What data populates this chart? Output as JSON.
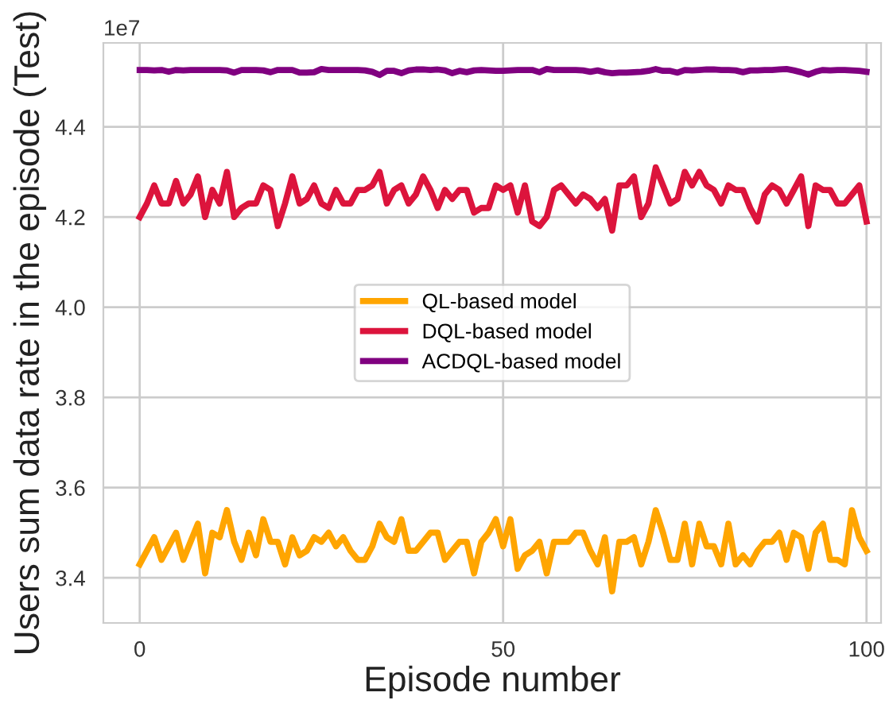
{
  "chart_data": {
    "type": "line",
    "xlabel": "Episode number",
    "ylabel": "Users sum data rate in the episode (Test)",
    "annotations": [
      "1e7"
    ],
    "x": [
      0,
      1,
      2,
      3,
      4,
      5,
      6,
      7,
      8,
      9,
      10,
      11,
      12,
      13,
      14,
      15,
      16,
      17,
      18,
      19,
      20,
      21,
      22,
      23,
      24,
      25,
      26,
      27,
      28,
      29,
      30,
      31,
      32,
      33,
      34,
      35,
      36,
      37,
      38,
      39,
      40,
      41,
      42,
      43,
      44,
      45,
      46,
      47,
      48,
      49,
      50,
      51,
      52,
      53,
      54,
      55,
      56,
      57,
      58,
      59,
      60,
      61,
      62,
      63,
      64,
      65,
      66,
      67,
      68,
      69,
      70,
      71,
      72,
      73,
      74,
      75,
      76,
      77,
      78,
      79,
      80,
      81,
      82,
      83,
      84,
      85,
      86,
      87,
      88,
      89,
      90,
      91,
      92,
      93,
      94,
      95,
      96,
      97,
      98,
      99,
      100
    ],
    "series": [
      {
        "name": "QL-based model",
        "color": "#ffa500",
        "values": [
          3.43,
          3.46,
          3.49,
          3.44,
          3.47,
          3.5,
          3.44,
          3.48,
          3.52,
          3.41,
          3.5,
          3.49,
          3.55,
          3.48,
          3.44,
          3.5,
          3.45,
          3.53,
          3.48,
          3.48,
          3.43,
          3.49,
          3.45,
          3.46,
          3.49,
          3.48,
          3.5,
          3.47,
          3.49,
          3.46,
          3.44,
          3.44,
          3.47,
          3.52,
          3.49,
          3.48,
          3.53,
          3.46,
          3.46,
          3.48,
          3.5,
          3.5,
          3.44,
          3.46,
          3.48,
          3.48,
          3.41,
          3.48,
          3.5,
          3.53,
          3.47,
          3.53,
          3.42,
          3.45,
          3.46,
          3.48,
          3.41,
          3.48,
          3.48,
          3.48,
          3.5,
          3.5,
          3.46,
          3.43,
          3.49,
          3.37,
          3.48,
          3.48,
          3.49,
          3.43,
          3.48,
          3.55,
          3.5,
          3.44,
          3.44,
          3.52,
          3.43,
          3.52,
          3.47,
          3.47,
          3.43,
          3.52,
          3.43,
          3.45,
          3.43,
          3.46,
          3.48,
          3.48,
          3.5,
          3.44,
          3.5,
          3.49,
          3.42,
          3.5,
          3.52,
          3.44,
          3.44,
          3.43,
          3.55,
          3.49,
          3.46
        ]
      },
      {
        "name": "DQL-based model",
        "color": "#dc143c",
        "values": [
          4.2,
          4.23,
          4.27,
          4.23,
          4.23,
          4.28,
          4.23,
          4.25,
          4.29,
          4.2,
          4.26,
          4.23,
          4.3,
          4.2,
          4.22,
          4.23,
          4.23,
          4.27,
          4.26,
          4.18,
          4.23,
          4.29,
          4.23,
          4.24,
          4.27,
          4.23,
          4.22,
          4.26,
          4.23,
          4.23,
          4.26,
          4.26,
          4.27,
          4.3,
          4.23,
          4.26,
          4.27,
          4.23,
          4.25,
          4.29,
          4.26,
          4.22,
          4.26,
          4.24,
          4.26,
          4.26,
          4.21,
          4.22,
          4.22,
          4.27,
          4.26,
          4.27,
          4.21,
          4.27,
          4.19,
          4.18,
          4.2,
          4.26,
          4.27,
          4.25,
          4.23,
          4.25,
          4.24,
          4.22,
          4.24,
          4.17,
          4.27,
          4.27,
          4.29,
          4.2,
          4.23,
          4.31,
          4.27,
          4.23,
          4.24,
          4.3,
          4.27,
          4.3,
          4.27,
          4.26,
          4.23,
          4.27,
          4.26,
          4.26,
          4.22,
          4.19,
          4.25,
          4.27,
          4.26,
          4.23,
          4.26,
          4.29,
          4.18,
          4.27,
          4.26,
          4.26,
          4.23,
          4.23,
          4.25,
          4.27,
          4.19
        ]
      },
      {
        "name": "ACDQL-based model",
        "color": "#800080",
        "values": [
          4.526,
          4.526,
          4.525,
          4.526,
          4.522,
          4.526,
          4.525,
          4.526,
          4.526,
          4.526,
          4.526,
          4.526,
          4.525,
          4.52,
          4.526,
          4.526,
          4.526,
          4.525,
          4.521,
          4.526,
          4.526,
          4.526,
          4.52,
          4.52,
          4.521,
          4.528,
          4.526,
          4.526,
          4.526,
          4.526,
          4.526,
          4.525,
          4.522,
          4.515,
          4.524,
          4.524,
          4.519,
          4.525,
          4.527,
          4.527,
          4.526,
          4.527,
          4.525,
          4.519,
          4.524,
          4.521,
          4.525,
          4.526,
          4.525,
          4.524,
          4.524,
          4.525,
          4.526,
          4.526,
          4.526,
          4.521,
          4.528,
          4.526,
          4.526,
          4.526,
          4.526,
          4.525,
          4.522,
          4.525,
          4.521,
          4.519,
          4.52,
          4.52,
          4.521,
          4.522,
          4.524,
          4.528,
          4.524,
          4.524,
          4.52,
          4.526,
          4.525,
          4.526,
          4.527,
          4.527,
          4.526,
          4.526,
          4.525,
          4.521,
          4.525,
          4.525,
          4.526,
          4.526,
          4.527,
          4.528,
          4.525,
          4.521,
          4.516,
          4.522,
          4.526,
          4.525,
          4.526,
          4.526,
          4.525,
          4.524,
          4.522
        ]
      }
    ],
    "xlim": [
      -5,
      102
    ],
    "xticks": [
      0,
      50,
      100
    ],
    "ylim": [
      3.3,
      4.586
    ],
    "yticks": [
      3.4,
      3.6,
      3.8,
      {
        "value": 4.0,
        "label": "4.0"
      },
      4.2,
      4.4
    ],
    "grid": true,
    "legend": "center",
    "marker": "none",
    "line_style": "solid"
  }
}
